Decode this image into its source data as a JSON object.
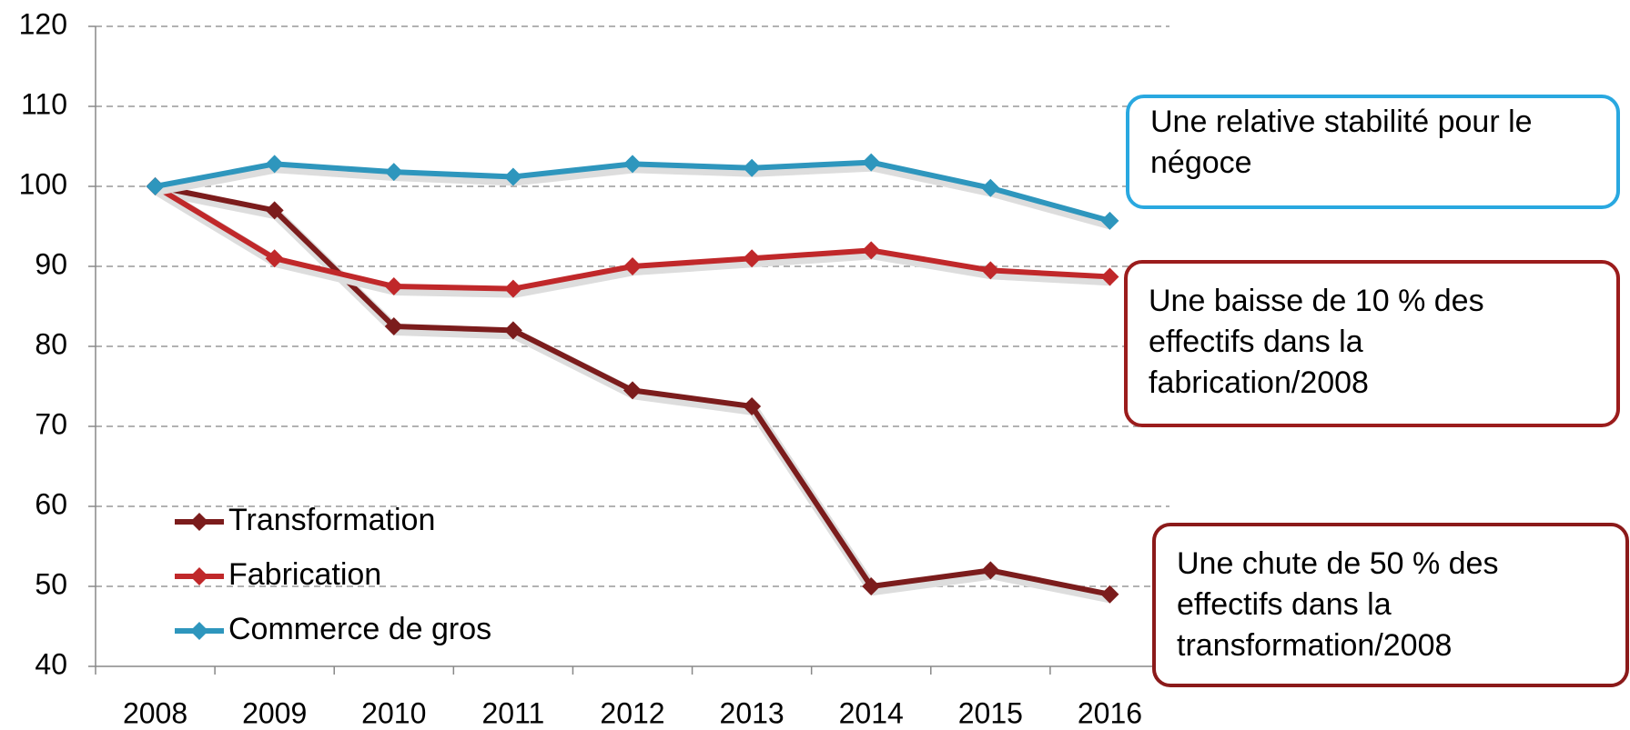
{
  "chart_data": {
    "type": "line",
    "categories": [
      "2008",
      "2009",
      "2010",
      "2011",
      "2012",
      "2013",
      "2014",
      "2015",
      "2016"
    ],
    "series": [
      {
        "name": "Transformation",
        "color": "#7b1c1c",
        "values": [
          100,
          97,
          82.5,
          82,
          74.5,
          72.5,
          50,
          52,
          49
        ]
      },
      {
        "name": "Fabrication",
        "color": "#c0282a",
        "values": [
          100,
          91,
          87.5,
          87.2,
          90,
          91,
          92,
          89.5,
          88.7
        ]
      },
      {
        "name": "Commerce de gros",
        "color": "#2e96bd",
        "values": [
          100,
          102.8,
          101.8,
          101.2,
          102.8,
          102.3,
          103,
          99.8,
          95.7
        ]
      }
    ],
    "ylim": [
      40,
      120
    ],
    "yticks": [
      40,
      50,
      60,
      70,
      80,
      90,
      100,
      110,
      120
    ],
    "grid": true,
    "legend": "lower left",
    "annotations": [
      {
        "lines": [
          "Une relative stabilité pour le",
          "négoce"
        ],
        "color": "#29a8e0"
      },
      {
        "lines": [
          "Une baisse de 10 % des",
          "effectifs dans la",
          "fabrication/2008"
        ],
        "color": "#9b1c1c"
      },
      {
        "lines": [
          "Une chute de 50 % des",
          "effectifs dans la",
          "transformation/2008"
        ],
        "color": "#8b1a1a"
      }
    ]
  }
}
